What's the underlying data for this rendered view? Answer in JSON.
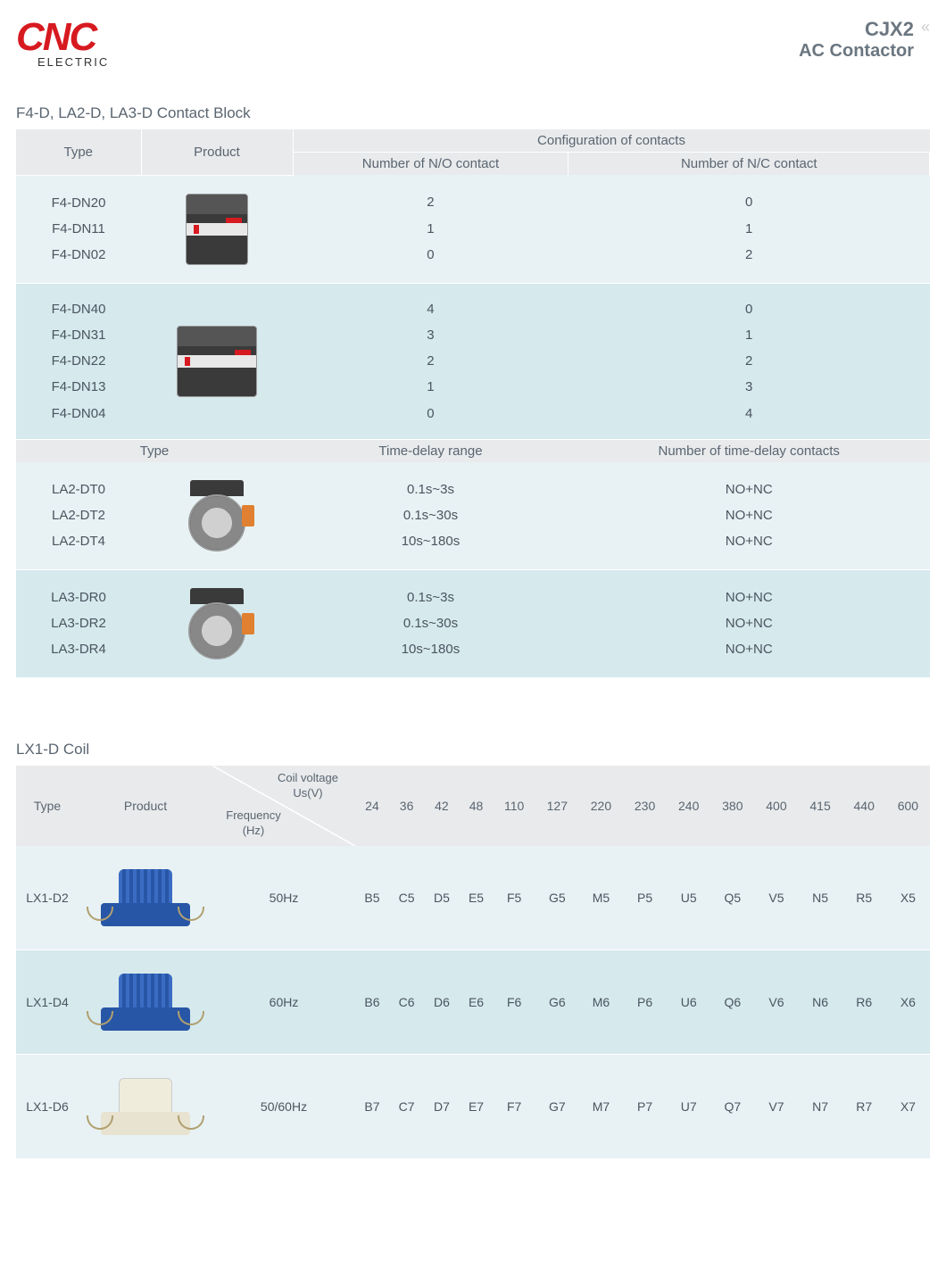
{
  "header": {
    "logo_main": "CNC",
    "logo_sub": "ELECTRIC",
    "title_main": "CJX2",
    "title_sub": "AC Contactor"
  },
  "section1": {
    "title": "F4-D, LA2-D, LA3-D Contact Block",
    "headers1": {
      "type": "Type",
      "product": "Product",
      "config": "Configuration of contacts",
      "no": "Number of N/O contact",
      "nc": "Number of N/C contact"
    },
    "headers2": {
      "type": "Type",
      "range": "Time-delay range",
      "count": "Number of time-delay contacts"
    },
    "group1": {
      "types": [
        "F4-DN20",
        "F4-DN11",
        "F4-DN02"
      ],
      "no": [
        "2",
        "1",
        "0"
      ],
      "nc": [
        "0",
        "1",
        "2"
      ]
    },
    "group2": {
      "types": [
        "F4-DN40",
        "F4-DN31",
        "F4-DN22",
        "F4-DN13",
        "F4-DN04"
      ],
      "no": [
        "4",
        "3",
        "2",
        "1",
        "0"
      ],
      "nc": [
        "0",
        "1",
        "2",
        "3",
        "4"
      ]
    },
    "group3": {
      "types": [
        "LA2-DT0",
        "LA2-DT2",
        "LA2-DT4"
      ],
      "range": [
        "0.1s~3s",
        "0.1s~30s",
        "10s~180s"
      ],
      "contacts": [
        "NO+NC",
        "NO+NC",
        "NO+NC"
      ]
    },
    "group4": {
      "types": [
        "LA3-DR0",
        "LA3-DR2",
        "LA3-DR4"
      ],
      "range": [
        "0.1s~3s",
        "0.1s~30s",
        "10s~180s"
      ],
      "contacts": [
        "NO+NC",
        "NO+NC",
        "NO+NC"
      ]
    }
  },
  "section2": {
    "title": "LX1-D Coil",
    "headers": {
      "type": "Type",
      "product": "Product",
      "diag_top": "Coil voltage Us(V)",
      "diag_bot": "Frequency (Hz)",
      "voltages": [
        "24",
        "36",
        "42",
        "48",
        "110",
        "127",
        "220",
        "230",
        "240",
        "380",
        "400",
        "415",
        "440",
        "600"
      ]
    },
    "rows": [
      {
        "type": "LX1-D2",
        "freq": "50Hz",
        "codes": [
          "B5",
          "C5",
          "D5",
          "E5",
          "F5",
          "G5",
          "M5",
          "P5",
          "U5",
          "Q5",
          "V5",
          "N5",
          "R5",
          "X5"
        ],
        "icon": "blue"
      },
      {
        "type": "LX1-D4",
        "freq": "60Hz",
        "codes": [
          "B6",
          "C6",
          "D6",
          "E6",
          "F6",
          "G6",
          "M6",
          "P6",
          "U6",
          "Q6",
          "V6",
          "N6",
          "R6",
          "X6"
        ],
        "icon": "blue"
      },
      {
        "type": "LX1-D6",
        "freq": "50/60Hz",
        "codes": [
          "B7",
          "C7",
          "D7",
          "E7",
          "F7",
          "G7",
          "M7",
          "P7",
          "U7",
          "Q7",
          "V7",
          "N7",
          "R7",
          "X7"
        ],
        "icon": "cream"
      }
    ]
  }
}
